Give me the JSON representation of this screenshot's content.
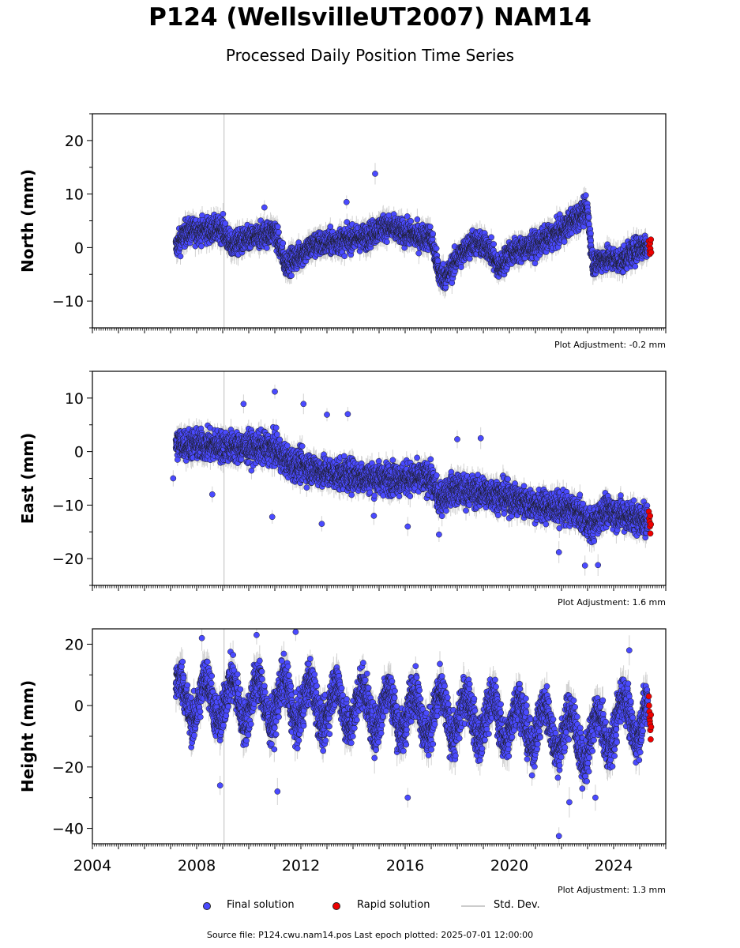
{
  "title": "P124 (WellsvilleUT2007) NAM14",
  "subtitle": "Processed Daily Position Time Series",
  "footer": "Source file: P124.cwu.nam14.pos  Last epoch plotted: 2025-07-01 12:00:00",
  "legend": {
    "final": "Final solution",
    "rapid": "Rapid solution",
    "std": "Std. Dev."
  },
  "colors": {
    "final": "#4a4aff",
    "rapid": "#ee0000",
    "std": "#b4b4b4",
    "vline": "#c8c8c8"
  },
  "chart_data": [
    {
      "type": "scatter",
      "ylabel": "North (mm)",
      "adjustment": "Plot Adjustment: -0.2 mm",
      "xlim": [
        2004,
        2026
      ],
      "ylim": [
        -15,
        25
      ],
      "yticks": [
        -10,
        0,
        10,
        20
      ],
      "xticks": [
        2004,
        2008,
        2012,
        2016,
        2020,
        2024
      ],
      "trend_knots": [
        [
          2007.2,
          0
        ],
        [
          2007.6,
          3
        ],
        [
          2009.0,
          3.5
        ],
        [
          2009.3,
          0.5
        ],
        [
          2011.0,
          3
        ],
        [
          2011.4,
          -3
        ],
        [
          2011.8,
          -2
        ],
        [
          2012.5,
          0.5
        ],
        [
          2014.5,
          2
        ],
        [
          2015.2,
          4
        ],
        [
          2016.5,
          2
        ],
        [
          2017.0,
          2
        ],
        [
          2017.3,
          -5
        ],
        [
          2017.6,
          -5.5
        ],
        [
          2018.0,
          -2
        ],
        [
          2018.6,
          1
        ],
        [
          2019.2,
          0
        ],
        [
          2019.6,
          -4
        ],
        [
          2020.0,
          -1
        ],
        [
          2021.0,
          0.5
        ],
        [
          2022.0,
          3
        ],
        [
          2022.4,
          5
        ],
        [
          2023.0,
          7
        ],
        [
          2023.2,
          -3
        ],
        [
          2023.7,
          -2
        ],
        [
          2024.3,
          -2.5
        ],
        [
          2025.0,
          0
        ],
        [
          2025.4,
          0.5
        ]
      ],
      "noise": 1.6,
      "std_half": 1.6,
      "outliers": [
        [
          2014.85,
          13.8
        ],
        [
          2013.75,
          8.5
        ],
        [
          2010.6,
          7.5
        ]
      ],
      "rapid": [
        [
          2025.35,
          1.2
        ],
        [
          2025.36,
          0.3
        ],
        [
          2025.38,
          -0.6
        ],
        [
          2025.39,
          -1.2
        ],
        [
          2025.4,
          0.8
        ],
        [
          2025.41,
          -0.2
        ],
        [
          2025.43,
          1.5
        ],
        [
          2025.44,
          -0.9
        ]
      ]
    },
    {
      "type": "scatter",
      "ylabel": "East (mm)",
      "adjustment": "Plot Adjustment: 1.6 mm",
      "xlim": [
        2004,
        2026
      ],
      "ylim": [
        -25,
        15
      ],
      "yticks": [
        -20,
        -10,
        0,
        10
      ],
      "xticks": [
        2004,
        2008,
        2012,
        2016,
        2020,
        2024
      ],
      "trend_knots": [
        [
          2007.2,
          1.5
        ],
        [
          2009.0,
          1
        ],
        [
          2011.0,
          0.5
        ],
        [
          2011.5,
          -2
        ],
        [
          2013.0,
          -4
        ],
        [
          2015.0,
          -5
        ],
        [
          2017.0,
          -5
        ],
        [
          2017.3,
          -9
        ],
        [
          2017.8,
          -7
        ],
        [
          2019.5,
          -8
        ],
        [
          2021.0,
          -10
        ],
        [
          2022.5,
          -11
        ],
        [
          2023.2,
          -14
        ],
        [
          2023.6,
          -11
        ],
        [
          2025.4,
          -13
        ]
      ],
      "noise": 2.0,
      "std_half": 1.6,
      "outliers": [
        [
          2011.0,
          11.2
        ],
        [
          2012.1,
          8.9
        ],
        [
          2013.0,
          6.9
        ],
        [
          2013.8,
          7.0
        ],
        [
          2009.8,
          8.9
        ],
        [
          2007.1,
          -5
        ],
        [
          2008.6,
          -8
        ],
        [
          2010.9,
          -12.2
        ],
        [
          2012.8,
          -13.5
        ],
        [
          2014.8,
          -12
        ],
        [
          2016.1,
          -14
        ],
        [
          2017.3,
          -15.5
        ],
        [
          2018.9,
          2.5
        ],
        [
          2021.9,
          -18.8
        ],
        [
          2022.9,
          -21.3
        ],
        [
          2023.4,
          -21.2
        ],
        [
          2018.0,
          2.3
        ]
      ],
      "rapid": [
        [
          2025.35,
          -11.2
        ],
        [
          2025.36,
          -12.5
        ],
        [
          2025.38,
          -13.1
        ],
        [
          2025.39,
          -14.0
        ],
        [
          2025.4,
          -12.0
        ],
        [
          2025.41,
          -15.3
        ],
        [
          2025.43,
          -13.6
        ]
      ]
    },
    {
      "type": "scatter",
      "ylabel": "Height (mm)",
      "adjustment": "Plot Adjustment: 1.3 mm",
      "xlim": [
        2004,
        2026
      ],
      "ylim": [
        -45,
        25
      ],
      "yticks": [
        -40,
        -20,
        0,
        20
      ],
      "xticks": [
        2004,
        2008,
        2012,
        2016,
        2020,
        2024
      ],
      "xticklabels": [
        "2004",
        "2008",
        "2012",
        "2016",
        "2020",
        "2024"
      ],
      "trend_knots": [
        [
          2007.2,
          2
        ],
        [
          2012.0,
          1
        ],
        [
          2016.0,
          -2
        ],
        [
          2020.0,
          -5
        ],
        [
          2022.0,
          -8
        ],
        [
          2023.0,
          -12
        ],
        [
          2024.5,
          -3
        ],
        [
          2025.4,
          -5
        ]
      ],
      "seasonal_amp": 7,
      "noise": 5.0,
      "std_half": 4.0,
      "outliers": [
        [
          2011.8,
          24
        ],
        [
          2010.3,
          23
        ],
        [
          2008.2,
          22
        ],
        [
          2008.9,
          -26
        ],
        [
          2011.1,
          -28
        ],
        [
          2016.1,
          -30
        ],
        [
          2021.9,
          -42.5
        ],
        [
          2022.3,
          -31.5
        ],
        [
          2024.6,
          18
        ],
        [
          2023.3,
          -30
        ]
      ],
      "rapid": [
        [
          2025.35,
          3
        ],
        [
          2025.36,
          0
        ],
        [
          2025.37,
          -2
        ],
        [
          2025.38,
          -4
        ],
        [
          2025.39,
          -5
        ],
        [
          2025.4,
          -6
        ],
        [
          2025.41,
          -8
        ],
        [
          2025.42,
          -11
        ],
        [
          2025.43,
          -3
        ],
        [
          2025.44,
          -7
        ]
      ]
    }
  ]
}
